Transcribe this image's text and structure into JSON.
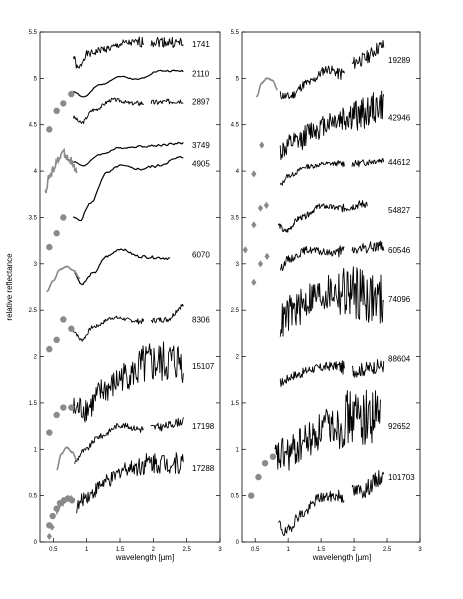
{
  "chart_data": [
    {
      "type": "line",
      "panel": "left",
      "ylabel": "relative reflectance",
      "xlabel": "wavelength [µm]",
      "xlim": [
        0.3,
        3.0
      ],
      "ylim": [
        0,
        5.5
      ],
      "xticks": [
        "0.5",
        "1",
        "1.5",
        "2",
        "2.5",
        "3"
      ],
      "yticks": [
        "0",
        "0.5",
        "1",
        "1.5",
        "2",
        "2.5",
        "3",
        "3.5",
        "4",
        "4.5",
        "5",
        "5.5"
      ],
      "grid": false,
      "series": [
        {
          "name": "1741",
          "label_y": 5.37,
          "offset": 5.3,
          "shape": "wavy",
          "noise": 0.04,
          "seed": 1,
          "nir": [
            [
              0.8,
              5.23
            ],
            [
              0.87,
              5.1
            ],
            [
              1.0,
              5.26
            ],
            [
              1.3,
              5.32
            ],
            [
              1.6,
              5.38
            ],
            [
              2.0,
              5.4
            ],
            [
              2.45,
              5.38
            ]
          ],
          "phot": [],
          "phot_shape": "circle"
        },
        {
          "name": "2110",
          "label_y": 5.05,
          "offset": 4.95,
          "shape": "smooth",
          "noise": 0.006,
          "seed": 2,
          "nir": [
            [
              0.8,
              4.86
            ],
            [
              0.95,
              4.8
            ],
            [
              1.2,
              4.93
            ],
            [
              1.5,
              5.02
            ],
            [
              1.75,
              4.99
            ],
            [
              2.1,
              5.08
            ],
            [
              2.45,
              5.08
            ]
          ],
          "phot": [
            [
              0.44,
              4.45
            ],
            [
              0.55,
              4.65
            ],
            [
              0.65,
              4.73
            ],
            [
              0.77,
              4.83
            ]
          ],
          "phot_shape": "circle"
        },
        {
          "name": "2897",
          "label_y": 4.75,
          "offset": 4.7,
          "shape": "wavy",
          "noise": 0.02,
          "seed": 3,
          "nir": [
            [
              0.8,
              4.58
            ],
            [
              0.92,
              4.52
            ],
            [
              1.1,
              4.66
            ],
            [
              1.4,
              4.77
            ],
            [
              1.7,
              4.73
            ],
            [
              2.0,
              4.74
            ],
            [
              2.45,
              4.76
            ]
          ],
          "phot": [],
          "phot_shape": "circle"
        },
        {
          "name": "3749",
          "label_y": 4.28,
          "offset": 4.25,
          "shape": "smooth",
          "noise": 0.008,
          "seed": 4,
          "nir": [
            [
              0.8,
              4.1
            ],
            [
              0.95,
              4.06
            ],
            [
              1.2,
              4.18
            ],
            [
              1.5,
              4.25
            ],
            [
              1.9,
              4.27
            ],
            [
              2.45,
              4.3
            ]
          ],
          "phot": [],
          "phot_shape": "circle"
        },
        {
          "name": "4905",
          "label_y": 4.08,
          "offset": 3.95,
          "shape": "smooth",
          "noise": 0.01,
          "seed": 5,
          "nir": [
            [
              0.8,
              3.5
            ],
            [
              0.9,
              3.47
            ],
            [
              1.05,
              3.65
            ],
            [
              1.3,
              3.98
            ],
            [
              1.5,
              4.06
            ],
            [
              1.8,
              4.02
            ],
            [
              2.0,
              4.05
            ],
            [
              2.45,
              4.15
            ]
          ],
          "phot": [
            [
              0.44,
              3.18
            ],
            [
              0.55,
              3.33
            ],
            [
              0.65,
              3.5
            ]
          ],
          "phot_shape": "circle",
          "vis": [
            [
              0.38,
              3.8
            ],
            [
              0.45,
              3.95
            ],
            [
              0.55,
              4.1
            ],
            [
              0.65,
              4.2
            ],
            [
              0.75,
              4.12
            ],
            [
              0.85,
              3.98
            ]
          ],
          "vis_noise": 0.05
        },
        {
          "name": "6070",
          "label_y": 3.1,
          "offset": 3.0,
          "shape": "smooth",
          "noise": 0.01,
          "seed": 6,
          "nir": [
            [
              0.82,
              2.9
            ],
            [
              0.92,
              2.78
            ],
            [
              1.1,
              2.9
            ],
            [
              1.3,
              3.08
            ],
            [
              1.5,
              3.16
            ],
            [
              1.8,
              3.08
            ],
            [
              2.0,
              3.07
            ],
            [
              2.25,
              3.06
            ]
          ],
          "phot": [],
          "phot_shape": "circle",
          "vis": [
            [
              0.4,
              2.7
            ],
            [
              0.5,
              2.82
            ],
            [
              0.6,
              2.94
            ],
            [
              0.7,
              2.97
            ],
            [
              0.8,
              2.93
            ],
            [
              0.9,
              2.84
            ]
          ],
          "vis_noise": 0.004
        },
        {
          "name": "8306",
          "label_y": 2.4,
          "offset": 2.4,
          "shape": "wavy",
          "noise": 0.02,
          "seed": 7,
          "nir": [
            [
              0.8,
              2.28
            ],
            [
              0.92,
              2.18
            ],
            [
              1.1,
              2.32
            ],
            [
              1.4,
              2.42
            ],
            [
              1.8,
              2.38
            ],
            [
              2.2,
              2.4
            ],
            [
              2.45,
              2.55
            ]
          ],
          "phot": [
            [
              0.44,
              2.08
            ],
            [
              0.55,
              2.18
            ],
            [
              0.65,
              2.4
            ],
            [
              0.77,
              2.3
            ]
          ],
          "phot_shape": "circle"
        },
        {
          "name": "15107",
          "label_y": 1.9,
          "offset": 1.85,
          "shape": "noisy",
          "noise": 0.16,
          "seed": 8,
          "nir": [
            [
              0.8,
              1.42
            ],
            [
              1.0,
              1.45
            ],
            [
              1.3,
              1.65
            ],
            [
              1.6,
              1.8
            ],
            [
              2.0,
              1.92
            ],
            [
              2.45,
              1.95
            ]
          ],
          "phot": [
            [
              0.44,
              1.18
            ],
            [
              0.55,
              1.37
            ],
            [
              0.65,
              1.45
            ],
            [
              0.77,
              1.45
            ]
          ],
          "phot_shape": "circle"
        },
        {
          "name": "17198",
          "label_y": 1.25,
          "offset": 1.2,
          "shape": "wavy",
          "noise": 0.03,
          "seed": 9,
          "nir": [
            [
              0.82,
              0.86
            ],
            [
              0.95,
              0.98
            ],
            [
              1.2,
              1.14
            ],
            [
              1.5,
              1.26
            ],
            [
              1.8,
              1.22
            ],
            [
              2.1,
              1.24
            ],
            [
              2.45,
              1.3
            ]
          ],
          "phot": [],
          "phot_shape": "circle",
          "vis": [
            [
              0.55,
              0.78
            ],
            [
              0.62,
              0.95
            ],
            [
              0.7,
              1.02
            ],
            [
              0.78,
              0.97
            ],
            [
              0.86,
              0.88
            ]
          ],
          "vis_noise": 0.004
        },
        {
          "name": "17288",
          "label_y": 0.8,
          "offset": 0.75,
          "shape": "noisy",
          "noise": 0.08,
          "seed": 10,
          "nir": [
            [
              0.85,
              0.38
            ],
            [
              1.0,
              0.5
            ],
            [
              1.3,
              0.65
            ],
            [
              1.6,
              0.8
            ],
            [
              2.0,
              0.86
            ],
            [
              2.45,
              0.85
            ]
          ],
          "phot": [
            [
              0.44,
              0.18
            ],
            [
              0.49,
              0.28
            ],
            [
              0.55,
              0.36
            ],
            [
              0.6,
              0.42
            ],
            [
              0.66,
              0.45
            ],
            [
              0.72,
              0.47
            ],
            [
              0.78,
              0.45
            ]
          ],
          "phot_shape": "circle",
          "phot_extra": [
            [
              0.44,
              0.06
            ],
            [
              0.48,
              0.16
            ]
          ],
          "phot_extra_shape": "diamond",
          "vis": [
            [
              0.55,
              0.32
            ],
            [
              0.62,
              0.4
            ],
            [
              0.7,
              0.46
            ],
            [
              0.78,
              0.48
            ]
          ],
          "vis_noise": 0.01
        }
      ]
    },
    {
      "type": "line",
      "panel": "right",
      "ylabel": "",
      "xlabel": "wavelength [µm]",
      "xlim": [
        0.3,
        3.0
      ],
      "ylim": [
        0,
        5.5
      ],
      "xticks": [
        "0.5",
        "1",
        "1.5",
        "2",
        "2.5",
        "3"
      ],
      "yticks": [
        "0",
        "0.5",
        "1",
        "1.5",
        "2",
        "2.5",
        "3",
        "3.5",
        "4",
        "4.5",
        "5",
        "5.5"
      ],
      "grid": false,
      "series": [
        {
          "name": "19289",
          "label_y": 5.2,
          "offset": 5.15,
          "shape": "wavy",
          "noise": 0.05,
          "seed": 11,
          "nir": [
            [
              0.88,
              4.82
            ],
            [
              1.0,
              4.8
            ],
            [
              1.3,
              4.95
            ],
            [
              1.6,
              5.1
            ],
            [
              1.8,
              5.05
            ],
            [
              2.1,
              5.2
            ],
            [
              2.45,
              5.35
            ]
          ],
          "phot": [],
          "phot_shape": "circle",
          "vis": [
            [
              0.52,
              4.8
            ],
            [
              0.6,
              4.95
            ],
            [
              0.68,
              5.0
            ],
            [
              0.76,
              4.98
            ],
            [
              0.84,
              4.88
            ]
          ],
          "vis_noise": 0.004
        },
        {
          "name": "42946",
          "label_y": 4.58,
          "offset": 4.5,
          "shape": "noisy",
          "noise": 0.12,
          "seed": 12,
          "nir": [
            [
              0.88,
              4.22
            ],
            [
              1.1,
              4.3
            ],
            [
              1.4,
              4.45
            ],
            [
              1.7,
              4.55
            ],
            [
              2.0,
              4.6
            ],
            [
              2.45,
              4.7
            ]
          ],
          "phot": [
            [
              0.6,
              4.28
            ]
          ],
          "phot_shape": "diamond"
        },
        {
          "name": "44612",
          "label_y": 4.1,
          "offset": 4.05,
          "shape": "wavy",
          "noise": 0.025,
          "seed": 13,
          "nir": [
            [
              0.88,
              3.85
            ],
            [
              1.0,
              3.95
            ],
            [
              1.3,
              4.05
            ],
            [
              1.6,
              4.08
            ],
            [
              2.0,
              4.08
            ],
            [
              2.45,
              4.12
            ]
          ],
          "phot": [
            [
              0.48,
              3.97
            ]
          ],
          "phot_shape": "diamond"
        },
        {
          "name": "54827",
          "label_y": 3.58,
          "offset": 3.5,
          "shape": "wavy",
          "noise": 0.03,
          "seed": 14,
          "nir": [
            [
              0.85,
              3.42
            ],
            [
              0.95,
              3.35
            ],
            [
              1.2,
              3.5
            ],
            [
              1.5,
              3.62
            ],
            [
              1.8,
              3.6
            ],
            [
              2.2,
              3.65
            ]
          ],
          "phot": [
            [
              0.48,
              3.42
            ],
            [
              0.58,
              3.6
            ],
            [
              0.67,
              3.63
            ]
          ],
          "phot_shape": "diamond"
        },
        {
          "name": "60546",
          "label_y": 3.15,
          "offset": 3.1,
          "shape": "wavy",
          "noise": 0.04,
          "seed": 15,
          "nir": [
            [
              0.88,
              2.95
            ],
            [
              1.0,
              3.05
            ],
            [
              1.3,
              3.15
            ],
            [
              1.6,
              3.12
            ],
            [
              2.0,
              3.15
            ],
            [
              2.45,
              3.2
            ]
          ],
          "phot": [
            [
              0.35,
              3.15
            ],
            [
              0.48,
              2.8
            ],
            [
              0.58,
              3.0
            ],
            [
              0.68,
              3.08
            ]
          ],
          "phot_shape": "diamond"
        },
        {
          "name": "74096",
          "label_y": 2.62,
          "offset": 2.55,
          "shape": "noisy",
          "noise": 0.2,
          "seed": 16,
          "nir": [
            [
              0.88,
              2.38
            ],
            [
              1.1,
              2.5
            ],
            [
              1.4,
              2.65
            ],
            [
              1.7,
              2.7
            ],
            [
              2.0,
              2.7
            ],
            [
              2.45,
              2.6
            ]
          ],
          "phot": [],
          "phot_shape": "circle"
        },
        {
          "name": "88604",
          "label_y": 1.98,
          "offset": 1.95,
          "shape": "wavy",
          "noise": 0.05,
          "seed": 17,
          "nir": [
            [
              0.88,
              1.72
            ],
            [
              1.1,
              1.8
            ],
            [
              1.4,
              1.87
            ],
            [
              1.7,
              1.9
            ],
            [
              2.0,
              1.85
            ],
            [
              2.45,
              1.9
            ]
          ],
          "phot": [],
          "phot_shape": "circle"
        },
        {
          "name": "92652",
          "label_y": 1.25,
          "offset": 1.2,
          "shape": "noisy",
          "noise": 0.2,
          "seed": 18,
          "nir": [
            [
              0.8,
              0.9
            ],
            [
              1.0,
              0.95
            ],
            [
              1.3,
              1.1
            ],
            [
              1.6,
              1.25
            ],
            [
              2.0,
              1.35
            ],
            [
              2.4,
              1.35
            ]
          ],
          "phot": [
            [
              0.44,
              0.5
            ],
            [
              0.55,
              0.7
            ],
            [
              0.65,
              0.85
            ],
            [
              0.77,
              0.92
            ]
          ],
          "phot_shape": "circle"
        },
        {
          "name": "101703",
          "label_y": 0.7,
          "offset": 0.65,
          "shape": "wavy",
          "noise": 0.06,
          "seed": 19,
          "nir": [
            [
              0.85,
              0.2
            ],
            [
              0.95,
              0.1
            ],
            [
              1.2,
              0.3
            ],
            [
              1.5,
              0.48
            ],
            [
              1.8,
              0.5
            ],
            [
              2.1,
              0.55
            ],
            [
              2.45,
              0.7
            ]
          ],
          "phot": [],
          "phot_shape": "circle"
        }
      ]
    }
  ]
}
